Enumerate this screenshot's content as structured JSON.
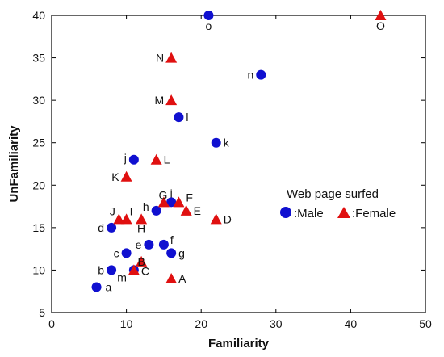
{
  "chart_data": {
    "type": "scatter",
    "xlabel": "Familiarity",
    "ylabel": "UnFamiliarity",
    "xlim": [
      0,
      50
    ],
    "ylim": [
      5,
      40
    ],
    "xticks": [
      0,
      10,
      20,
      30,
      40,
      50
    ],
    "yticks": [
      5,
      10,
      15,
      20,
      25,
      30,
      35,
      40
    ],
    "grid": false,
    "legend": {
      "title": "Web page surfed",
      "placement": "right",
      "entries": [
        ":Male",
        ":Female"
      ]
    },
    "series": [
      {
        "name": ":Male",
        "marker": "circle",
        "color": "#1010d0",
        "points": [
          {
            "label": "a",
            "x": 6,
            "y": 8
          },
          {
            "label": "b",
            "x": 8,
            "y": 10
          },
          {
            "label": "c",
            "x": 10,
            "y": 12
          },
          {
            "label": "d",
            "x": 8,
            "y": 15
          },
          {
            "label": "e",
            "x": 13,
            "y": 13
          },
          {
            "label": "f",
            "x": 15,
            "y": 13
          },
          {
            "label": "g",
            "x": 16,
            "y": 12
          },
          {
            "label": "h",
            "x": 14,
            "y": 17
          },
          {
            "label": "i",
            "x": 16,
            "y": 18
          },
          {
            "label": "j",
            "x": 11,
            "y": 23
          },
          {
            "label": "k",
            "x": 22,
            "y": 25
          },
          {
            "label": "l",
            "x": 17,
            "y": 28
          },
          {
            "label": "m",
            "x": 11,
            "y": 10
          },
          {
            "label": "n",
            "x": 28,
            "y": 33
          },
          {
            "label": "o",
            "x": 21,
            "y": 40
          }
        ]
      },
      {
        "name": ":Female",
        "marker": "triangle",
        "color": "#e01010",
        "points": [
          {
            "label": "A",
            "x": 16,
            "y": 9
          },
          {
            "label": "B",
            "x": 12,
            "y": 11
          },
          {
            "label": "C",
            "x": 11,
            "y": 10
          },
          {
            "label": "D",
            "x": 22,
            "y": 16
          },
          {
            "label": "E",
            "x": 18,
            "y": 17
          },
          {
            "label": "F",
            "x": 17,
            "y": 18
          },
          {
            "label": "G",
            "x": 15,
            "y": 18
          },
          {
            "label": "H",
            "x": 12,
            "y": 16
          },
          {
            "label": "I",
            "x": 10,
            "y": 16
          },
          {
            "label": "J",
            "x": 9,
            "y": 16
          },
          {
            "label": "K",
            "x": 10,
            "y": 21
          },
          {
            "label": "L",
            "x": 14,
            "y": 23
          },
          {
            "label": "M",
            "x": 16,
            "y": 30
          },
          {
            "label": "N",
            "x": 16,
            "y": 35
          },
          {
            "label": "O",
            "x": 44,
            "y": 40
          }
        ]
      }
    ]
  }
}
